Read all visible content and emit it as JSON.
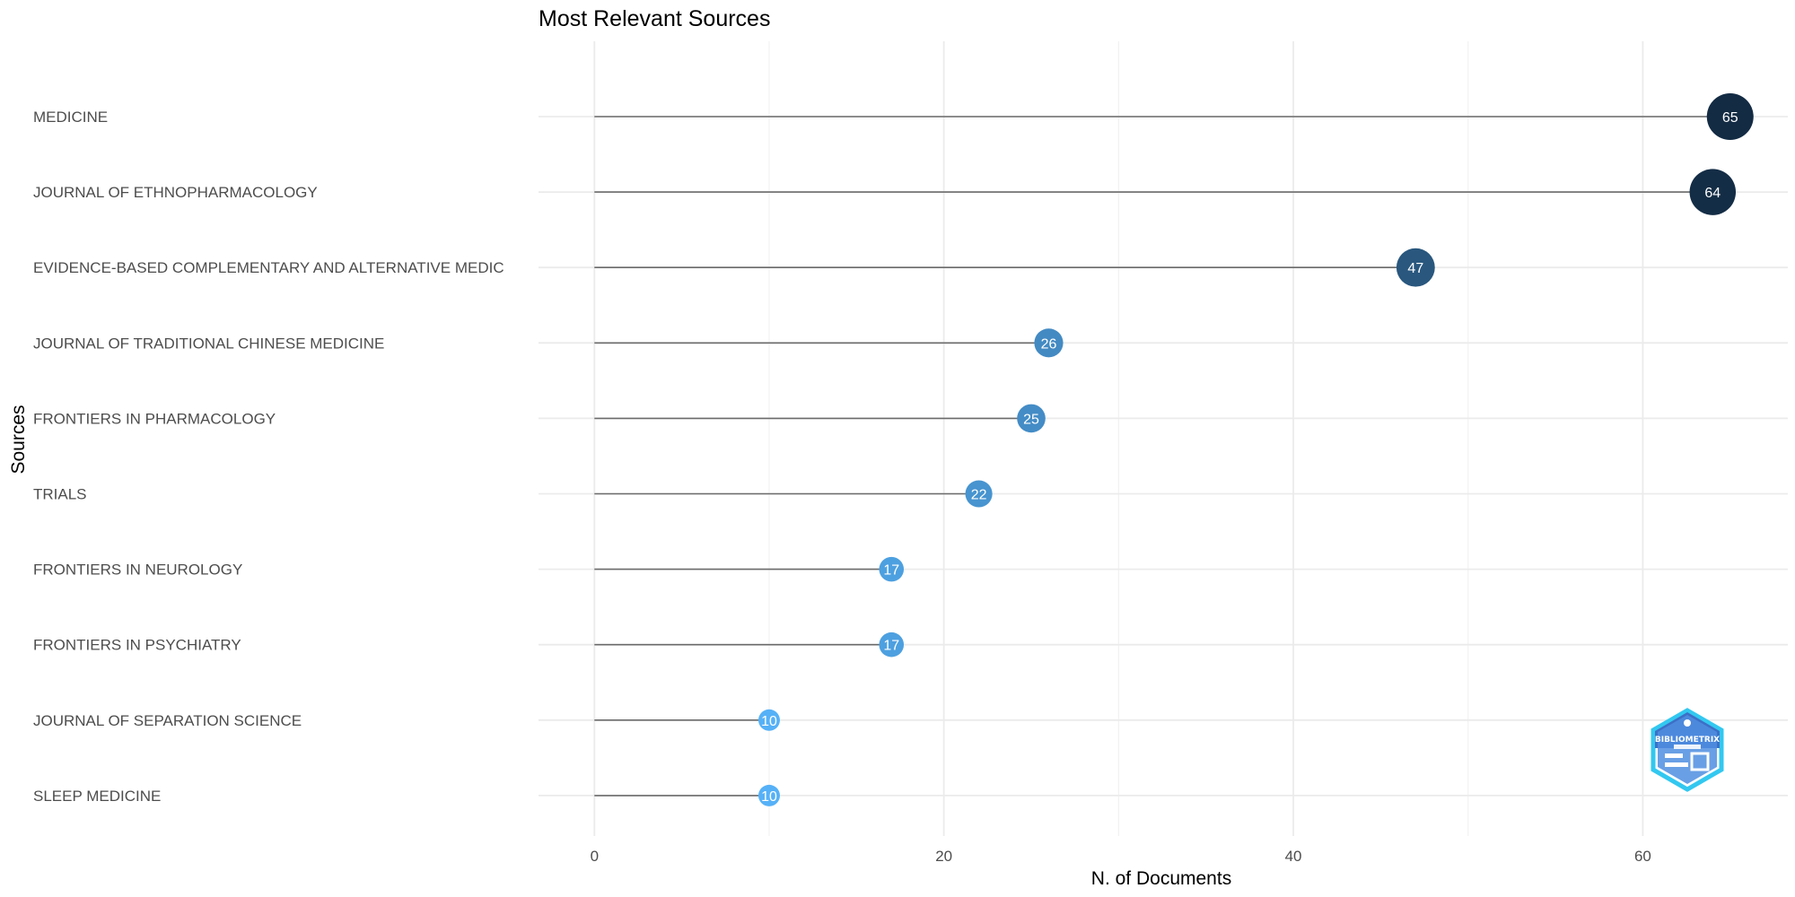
{
  "chart_data": {
    "type": "lollipop",
    "title": "Most Relevant Sources",
    "xlabel": "N. of Documents",
    "ylabel": "Sources",
    "xlim": [
      -3.2,
      68.3
    ],
    "xticks": [
      0,
      20,
      40,
      60
    ],
    "grid": true,
    "categories": [
      "MEDICINE",
      "JOURNAL OF ETHNOPHARMACOLOGY",
      "EVIDENCE-BASED COMPLEMENTARY AND ALTERNATIVE MEDIC",
      "JOURNAL OF TRADITIONAL CHINESE MEDICINE",
      "FRONTIERS IN PHARMACOLOGY",
      "TRIALS",
      "FRONTIERS IN NEUROLOGY",
      "FRONTIERS IN PSYCHIATRY",
      "JOURNAL OF SEPARATION SCIENCE",
      "SLEEP MEDICINE"
    ],
    "values": [
      65,
      64,
      47,
      26,
      25,
      22,
      17,
      17,
      10,
      10
    ],
    "color_scale": [
      "#56b1f7",
      "#132b43"
    ]
  },
  "logo": {
    "text": "BIBLIOMETRIX",
    "colors": {
      "dark": "#3d6fc7",
      "light": "#32c8f0"
    }
  }
}
